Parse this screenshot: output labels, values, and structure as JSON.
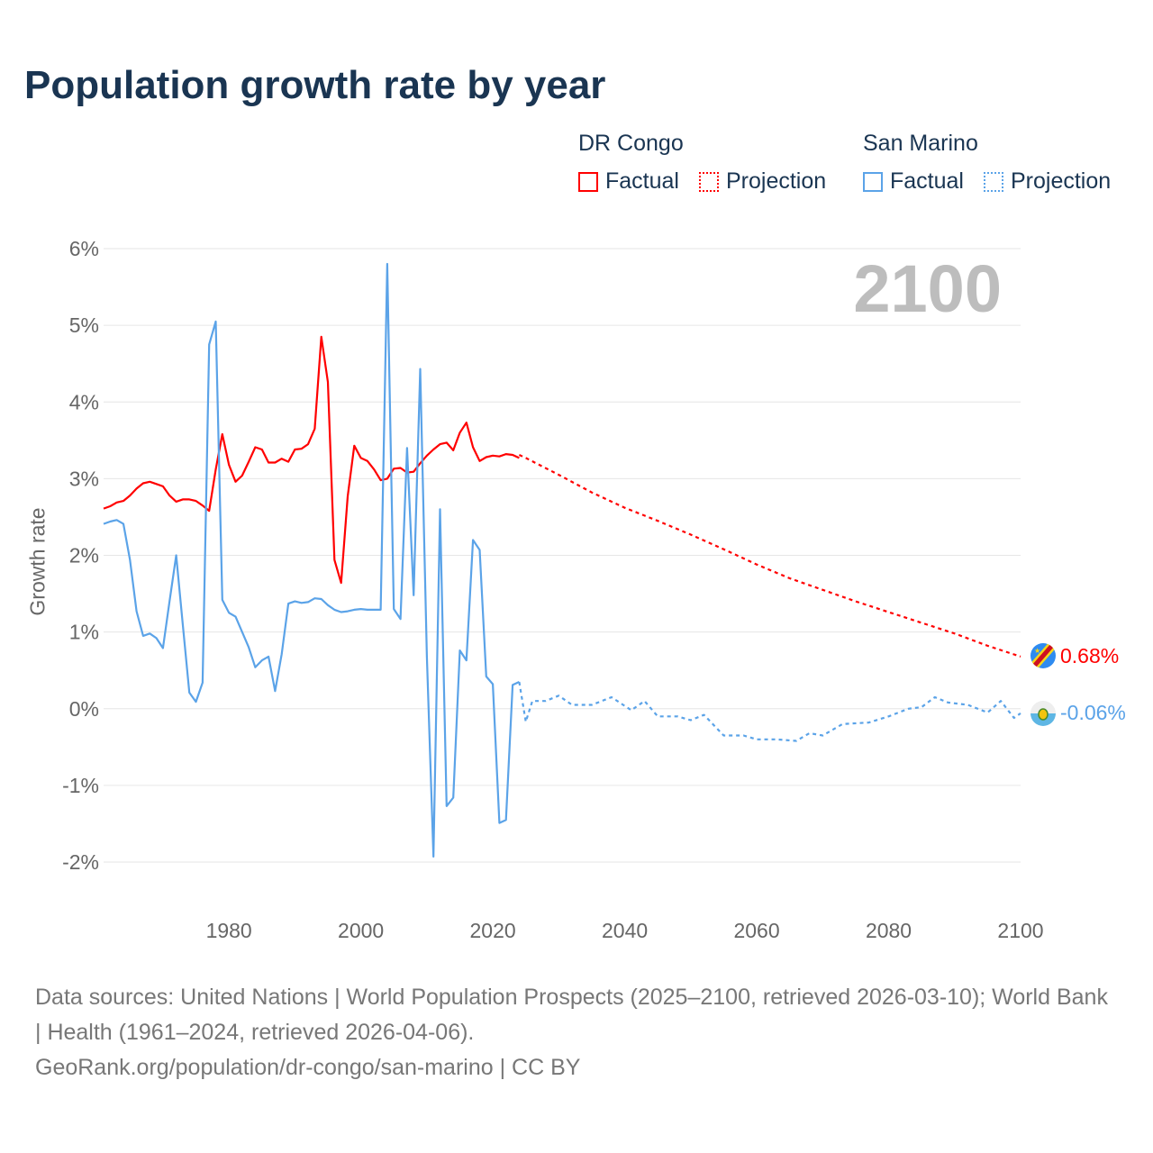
{
  "title": "Population growth rate by year",
  "year_label": "2100",
  "legend": {
    "groups": [
      {
        "name": "DR Congo",
        "factual": "Factual",
        "projection": "Projection",
        "color": "#ff0000"
      },
      {
        "name": "San Marino",
        "factual": "Factual",
        "projection": "Projection",
        "color": "#5ba3e8"
      }
    ]
  },
  "end_labels": {
    "dr_congo": "0.68%",
    "san_marino": "-0.06%"
  },
  "source": {
    "line1": "Data sources: United Nations | World Population Prospects (2025–2100, retrieved 2026-03-10); World Bank | Health (1961–2024, retrieved 2026-04-06).",
    "line2": "GeoRank.org/population/dr-congo/san-marino | CC BY"
  },
  "chart_data": {
    "type": "line",
    "title": "Population growth rate by year",
    "ylabel": "Growth rate",
    "xlabel": "",
    "xlim": [
      1961,
      2100
    ],
    "ylim": [
      -2,
      6
    ],
    "yticks": [
      "6%",
      "5%",
      "4%",
      "3%",
      "2%",
      "1%",
      "0%",
      "-1%",
      "-2%"
    ],
    "ytick_values": [
      6,
      5,
      4,
      3,
      2,
      1,
      0,
      -1,
      -2
    ],
    "xticks": [
      "1980",
      "2000",
      "2020",
      "2040",
      "2060",
      "2080",
      "2100"
    ],
    "xtick_values": [
      1980,
      2000,
      2020,
      2040,
      2060,
      2080,
      2100
    ],
    "grid": true,
    "series": [
      {
        "name": "DR Congo Factual",
        "color": "#ff0000",
        "dashed": false,
        "start": 1961,
        "values": [
          2.61,
          2.64,
          2.69,
          2.71,
          2.78,
          2.87,
          2.94,
          2.96,
          2.93,
          2.9,
          2.78,
          2.7,
          2.73,
          2.73,
          2.71,
          2.65,
          2.58,
          3.12,
          3.58,
          3.18,
          2.96,
          3.04,
          3.22,
          3.41,
          3.38,
          3.21,
          3.21,
          3.26,
          3.22,
          3.38,
          3.39,
          3.45,
          3.65,
          4.85,
          4.26,
          1.94,
          1.64,
          2.77,
          3.43,
          3.27,
          3.23,
          3.12,
          2.98,
          3.0,
          3.13,
          3.14,
          3.08,
          3.09,
          3.2,
          3.3,
          3.38,
          3.45,
          3.47,
          3.37,
          3.6,
          3.73,
          3.41,
          3.23,
          3.28,
          3.3,
          3.29,
          3.32,
          3.31,
          3.27
        ]
      },
      {
        "name": "DR Congo Projection",
        "color": "#ff0000",
        "dashed": true,
        "points": [
          [
            2024,
            3.31
          ],
          [
            2025,
            3.27
          ],
          [
            2030,
            3.05
          ],
          [
            2035,
            2.82
          ],
          [
            2040,
            2.62
          ],
          [
            2045,
            2.45
          ],
          [
            2050,
            2.27
          ],
          [
            2055,
            2.08
          ],
          [
            2060,
            1.88
          ],
          [
            2065,
            1.7
          ],
          [
            2070,
            1.55
          ],
          [
            2075,
            1.4
          ],
          [
            2080,
            1.26
          ],
          [
            2085,
            1.12
          ],
          [
            2090,
            0.98
          ],
          [
            2095,
            0.82
          ],
          [
            2100,
            0.68
          ]
        ]
      },
      {
        "name": "San Marino Factual",
        "color": "#5ba3e8",
        "dashed": false,
        "start": 1961,
        "values": [
          2.41,
          2.44,
          2.46,
          2.41,
          1.94,
          1.27,
          0.95,
          0.98,
          0.92,
          0.79,
          1.4,
          2.0,
          1.1,
          0.21,
          0.09,
          0.34,
          4.75,
          5.05,
          1.42,
          1.25,
          1.2,
          1.0,
          0.8,
          0.54,
          0.63,
          0.68,
          0.23,
          0.71,
          1.37,
          1.4,
          1.38,
          1.39,
          1.44,
          1.43,
          1.35,
          1.29,
          1.26,
          1.27,
          1.29,
          1.3,
          1.29,
          1.29,
          1.29,
          5.8,
          1.3,
          1.17,
          3.4,
          1.48,
          4.43,
          0.68,
          -1.93,
          2.6,
          -1.27,
          -1.16,
          0.76,
          0.63,
          2.2,
          2.07,
          0.42,
          0.32,
          -1.49,
          -1.45,
          0.31,
          0.35
        ]
      },
      {
        "name": "San Marino Projection",
        "color": "#5ba3e8",
        "dashed": true,
        "points": [
          [
            2024,
            0.35
          ],
          [
            2025,
            -0.17
          ],
          [
            2026,
            0.1
          ],
          [
            2028,
            0.1
          ],
          [
            2030,
            0.17
          ],
          [
            2032,
            0.05
          ],
          [
            2035,
            0.05
          ],
          [
            2038,
            0.15
          ],
          [
            2041,
            -0.02
          ],
          [
            2043,
            0.1
          ],
          [
            2045,
            -0.1
          ],
          [
            2048,
            -0.1
          ],
          [
            2050,
            -0.15
          ],
          [
            2052,
            -0.08
          ],
          [
            2055,
            -0.35
          ],
          [
            2058,
            -0.35
          ],
          [
            2060,
            -0.4
          ],
          [
            2063,
            -0.4
          ],
          [
            2066,
            -0.42
          ],
          [
            2068,
            -0.32
          ],
          [
            2070,
            -0.35
          ],
          [
            2073,
            -0.2
          ],
          [
            2077,
            -0.18
          ],
          [
            2080,
            -0.1
          ],
          [
            2083,
            0.0
          ],
          [
            2085,
            0.02
          ],
          [
            2087,
            0.15
          ],
          [
            2089,
            0.08
          ],
          [
            2092,
            0.05
          ],
          [
            2095,
            -0.05
          ],
          [
            2097,
            0.1
          ],
          [
            2099,
            -0.12
          ],
          [
            2100,
            -0.06
          ]
        ]
      }
    ]
  }
}
